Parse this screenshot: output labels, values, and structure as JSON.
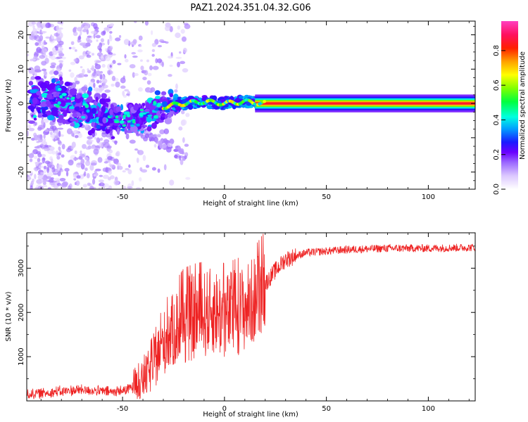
{
  "title": "PAZ1.2024.351.04.32.G06",
  "chart_data": [
    {
      "type": "heatmap",
      "xlabel": "Height of straight line (km)",
      "ylabel": "Frequency (Hz)",
      "xlim": [
        -97,
        123
      ],
      "ylim": [
        -25,
        24
      ],
      "xticks": [
        -50,
        0,
        50,
        100
      ],
      "yticks": [
        -20,
        -10,
        0,
        10,
        20
      ],
      "colorbar": {
        "label": "Normalized spectral amplitude",
        "range": [
          0,
          0.97
        ],
        "ticks": [
          0.0,
          0.2,
          0.4,
          0.6,
          0.8
        ],
        "colors": [
          "#ffffff",
          "#dcc8ff",
          "#9a66ff",
          "#6a00ff",
          "#1a1aff",
          "#00a0ff",
          "#00ffe0",
          "#00ff40",
          "#80ff00",
          "#ffff00",
          "#ffa000",
          "#ff2000",
          "#ff1060",
          "#ff40c0"
        ]
      },
      "ridge": [
        {
          "x": -80,
          "f": 1
        },
        {
          "x": -70,
          "f": -2
        },
        {
          "x": -60,
          "f": -4
        },
        {
          "x": -50,
          "f": -5
        },
        {
          "x": -40,
          "f": -4
        },
        {
          "x": -30,
          "f": -1
        },
        {
          "x": -20,
          "f": 0
        },
        {
          "x": -10,
          "f": 0.5
        },
        {
          "x": 0,
          "f": 0
        },
        {
          "x": 10,
          "f": 0.5
        },
        {
          "x": 20,
          "f": 0
        },
        {
          "x": 123,
          "f": 0
        }
      ]
    },
    {
      "type": "line",
      "xlabel": "Height of straight line (km)",
      "ylabel": "SNR (10 * v/v)",
      "xlim": [
        -97,
        123
      ],
      "ylim": [
        0,
        3800
      ],
      "xticks": [
        -50,
        0,
        50,
        100
      ],
      "yticks": [
        1000,
        2000,
        3000
      ],
      "color": "#ee2222",
      "envelope": [
        {
          "x": -97,
          "y": 150
        },
        {
          "x": -70,
          "y": 250
        },
        {
          "x": -55,
          "y": 200
        },
        {
          "x": -48,
          "y": 250
        },
        {
          "x": -40,
          "y": 450
        },
        {
          "x": -35,
          "y": 800
        },
        {
          "x": -30,
          "y": 1300
        },
        {
          "x": -25,
          "y": 1600
        },
        {
          "x": -20,
          "y": 1800
        },
        {
          "x": -15,
          "y": 1900
        },
        {
          "x": -10,
          "y": 1950
        },
        {
          "x": -5,
          "y": 2050
        },
        {
          "x": 0,
          "y": 1900
        },
        {
          "x": 5,
          "y": 2000
        },
        {
          "x": 10,
          "y": 2100
        },
        {
          "x": 15,
          "y": 2300
        },
        {
          "x": 20,
          "y": 2650
        },
        {
          "x": 25,
          "y": 2950
        },
        {
          "x": 30,
          "y": 3200
        },
        {
          "x": 40,
          "y": 3350
        },
        {
          "x": 60,
          "y": 3420
        },
        {
          "x": 80,
          "y": 3450
        },
        {
          "x": 100,
          "y": 3450
        },
        {
          "x": 123,
          "y": 3470
        }
      ]
    }
  ]
}
